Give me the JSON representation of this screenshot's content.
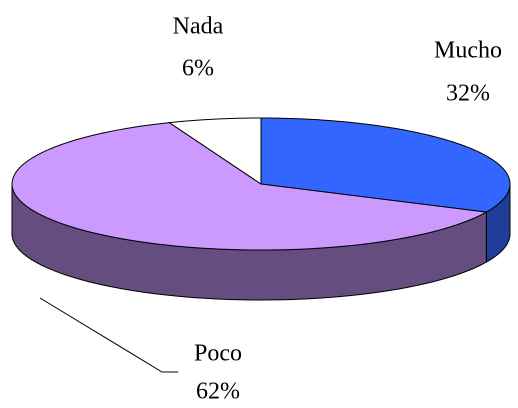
{
  "chart_data": {
    "type": "pie",
    "categories": [
      "Mucho",
      "Poco",
      "Nada"
    ],
    "values": [
      32,
      62,
      6
    ],
    "value_labels": [
      "32%",
      "62%",
      "6%"
    ],
    "colors": [
      "#3366ff",
      "#cc99ff",
      "#ffffff"
    ],
    "side_colors": [
      "#1f3d99",
      "#664d80",
      "#ffffff"
    ]
  }
}
